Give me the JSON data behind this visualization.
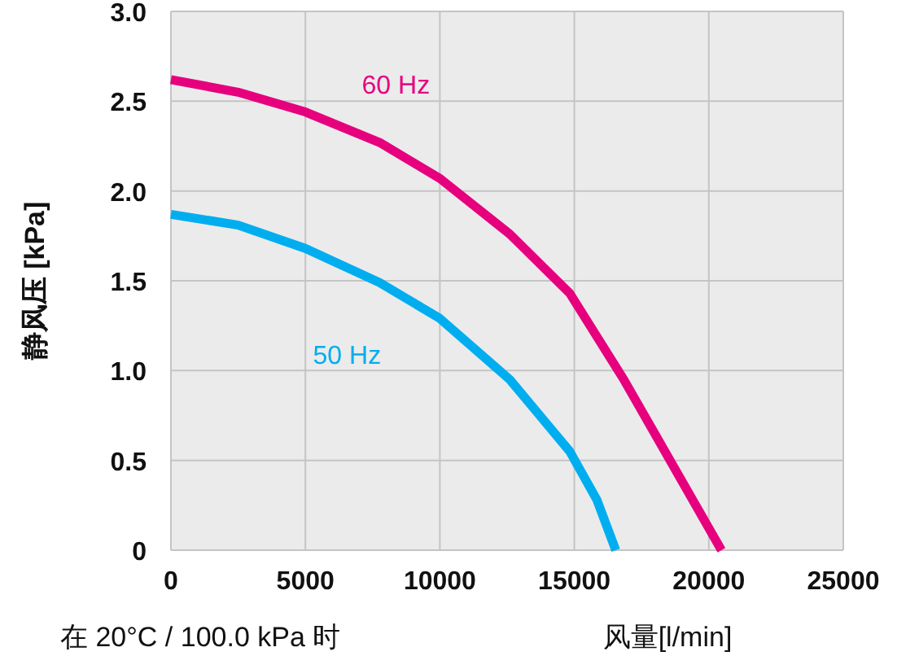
{
  "chart_data": {
    "type": "line",
    "xlabel": "风量[l/min]",
    "ylabel": "静风压 [kPa]",
    "annotations": [
      "在 20°C / 100.0 kPa 时"
    ],
    "xlim": [
      0,
      25000
    ],
    "xticks": [
      0,
      5000,
      10000,
      15000,
      20000,
      25000
    ],
    "ylim": [
      0,
      3.0
    ],
    "yticks": [
      {
        "value": 0,
        "label": "0"
      },
      0.5,
      {
        "value": 1,
        "label": "1.0"
      },
      1.5,
      {
        "value": 2,
        "label": "2.0"
      },
      2.5,
      {
        "value": 3,
        "label": "3.0"
      }
    ],
    "grid": true,
    "line_style": "solid",
    "series": [
      {
        "name": "50 Hz",
        "color": "#00aeef",
        "x": [
          0,
          2500,
          5000,
          7760,
          10000,
          12600,
          14830,
          15840,
          16540
        ],
        "values": [
          1.87,
          1.81,
          1.68,
          1.49,
          1.29,
          0.95,
          0.55,
          0.28,
          0
        ]
      },
      {
        "name": "60 Hz",
        "color": "#e6007e",
        "x": [
          0,
          2500,
          5000,
          7760,
          10000,
          12600,
          14830,
          16840,
          20470
        ],
        "values": [
          2.62,
          2.55,
          2.44,
          2.27,
          2.07,
          1.76,
          1.43,
          0.95,
          0
        ]
      }
    ]
  }
}
